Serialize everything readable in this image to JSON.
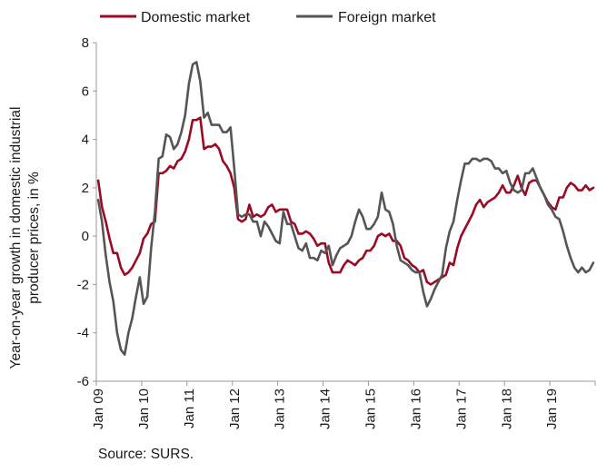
{
  "chart_data": {
    "type": "line",
    "title": "",
    "ylabel_lines": [
      "Year-on-year growth in domestic industrial",
      "producer prices, in %"
    ],
    "xlabel": "",
    "ylim": [
      -6,
      8
    ],
    "yticks": [
      -6,
      -4,
      -2,
      0,
      2,
      4,
      6,
      8
    ],
    "x_tick_labels": [
      "Jan 09",
      "Jan 10",
      "Jan 11",
      "Jan 12",
      "Jan 13",
      "Jan 14",
      "Jan 15",
      "Jan 16",
      "Jan 17",
      "Jan 18",
      "Jan 19"
    ],
    "x_start": "Jan 09",
    "x_end": "Dec 19",
    "grid": false,
    "legend_position": "top",
    "series": [
      {
        "name": "Domestic market",
        "color": "#9b0a24",
        "values": [
          2.3,
          1.2,
          0.6,
          -0.1,
          -0.7,
          -0.7,
          -1.3,
          -1.6,
          -1.5,
          -1.3,
          -1.0,
          -0.7,
          -0.1,
          0.1,
          0.5,
          0.6,
          2.6,
          2.6,
          2.7,
          2.9,
          2.8,
          3.1,
          3.2,
          3.5,
          4.0,
          4.8,
          4.8,
          4.9,
          3.6,
          3.7,
          3.7,
          3.8,
          3.6,
          3.1,
          2.9,
          2.6,
          2.0,
          0.7,
          0.6,
          0.7,
          1.3,
          0.8,
          0.9,
          0.8,
          0.9,
          1.2,
          1.3,
          1.0,
          1.1,
          1.1,
          1.1,
          0.6,
          0.5,
          0.1,
          0.1,
          0.2,
          0.1,
          -0.1,
          -0.4,
          -0.3,
          -0.3,
          -1.1,
          -1.5,
          -1.5,
          -1.5,
          -1.2,
          -1.0,
          -1.1,
          -1.2,
          -1.0,
          -0.9,
          -0.6,
          -0.6,
          -0.4,
          0.0,
          0.1,
          0.0,
          0.1,
          -0.2,
          -0.2,
          -0.4,
          -0.9,
          -1.0,
          -1.2,
          -1.3,
          -1.5,
          -1.4,
          -1.9,
          -2.0,
          -1.9,
          -1.8,
          -1.7,
          -1.6,
          -1.1,
          -1.2,
          -0.5,
          0.0,
          0.3,
          0.6,
          0.9,
          1.3,
          1.5,
          1.2,
          1.4,
          1.5,
          1.6,
          1.8,
          2.1,
          1.8,
          1.8,
          2.1,
          2.5,
          2.0,
          1.7,
          2.2,
          2.3,
          2.3,
          2.0,
          1.7,
          1.4,
          1.2,
          1.1,
          1.6,
          1.6,
          2.0,
          2.2,
          2.1,
          1.9,
          1.9,
          2.1,
          1.9,
          2.0
        ]
      },
      {
        "name": "Foreign market",
        "color": "#555555",
        "values": [
          1.5,
          0.6,
          -0.8,
          -1.9,
          -2.7,
          -4.0,
          -4.7,
          -4.9,
          -4.0,
          -3.4,
          -2.5,
          -1.7,
          -2.8,
          -2.5,
          -0.5,
          1.0,
          3.2,
          3.3,
          4.2,
          4.1,
          3.6,
          3.8,
          4.3,
          5.0,
          6.3,
          7.1,
          7.2,
          6.4,
          4.9,
          5.1,
          4.6,
          4.6,
          4.6,
          4.3,
          4.3,
          4.5,
          2.8,
          0.9,
          0.8,
          0.9,
          0.9,
          0.6,
          0.6,
          0.0,
          0.6,
          0.4,
          0.1,
          -0.2,
          -0.3,
          1.0,
          0.5,
          0.5,
          0.0,
          -0.5,
          -0.6,
          -0.3,
          -0.9,
          -0.9,
          -1.0,
          -0.6,
          -0.7,
          -0.4,
          -1.2,
          -0.8,
          -0.5,
          -0.4,
          -0.3,
          0.0,
          0.6,
          1.1,
          0.8,
          0.3,
          0.3,
          0.5,
          0.8,
          1.8,
          1.1,
          1.0,
          0.5,
          -0.4,
          -1.0,
          -1.1,
          -1.2,
          -1.4,
          -1.5,
          -1.5,
          -2.3,
          -2.9,
          -2.6,
          -2.2,
          -1.9,
          -1.6,
          -0.5,
          0.2,
          0.6,
          1.5,
          2.3,
          3.0,
          3.0,
          3.2,
          3.2,
          3.1,
          3.2,
          3.2,
          3.1,
          2.8,
          2.8,
          2.6,
          2.7,
          2.2,
          1.9,
          1.8,
          1.9,
          2.6,
          2.6,
          2.8,
          2.4,
          2.0,
          1.7,
          1.3,
          1.1,
          0.8,
          0.7,
          0.2,
          -0.4,
          -0.9,
          -1.3,
          -1.5,
          -1.3,
          -1.5,
          -1.4,
          -1.1
        ]
      }
    ]
  },
  "footer": {
    "source": "Source: SURS."
  }
}
